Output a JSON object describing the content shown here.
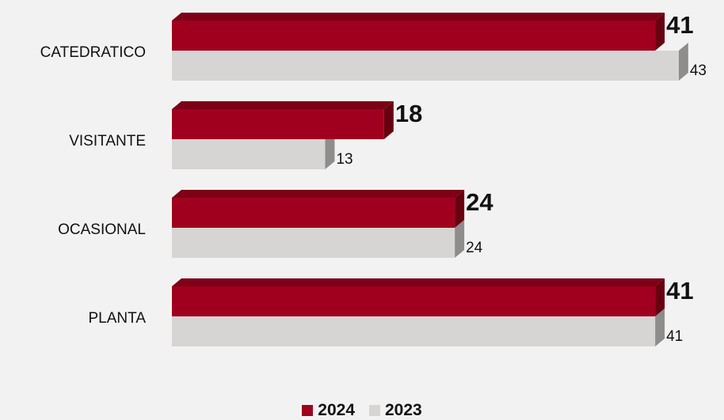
{
  "colors": {
    "series_2024": "#a0001e",
    "series_2024_top": "#7d0016",
    "series_2024_side": "#68000f",
    "series_2023": "#d7d4d4",
    "series_2023_top": "#c4c1c1",
    "series_2023_side": "#8f8c8c",
    "background": "#f3f2f2"
  },
  "chart_data": {
    "type": "bar",
    "orientation": "horizontal",
    "style": "3d",
    "categories": [
      "CATEDRATICO",
      "VISITANTE",
      "OCASIONAL",
      "PLANTA"
    ],
    "series": [
      {
        "name": "2024",
        "values": [
          41,
          18,
          24,
          41
        ]
      },
      {
        "name": "2023",
        "values": [
          43,
          13,
          24,
          41
        ]
      }
    ],
    "legend_position": "bottom-center",
    "grid": false,
    "data_labels": true
  },
  "legend": {
    "items": [
      {
        "label": "2024",
        "color_key": "series_2024"
      },
      {
        "label": "2023",
        "color_key": "series_2023"
      }
    ]
  }
}
